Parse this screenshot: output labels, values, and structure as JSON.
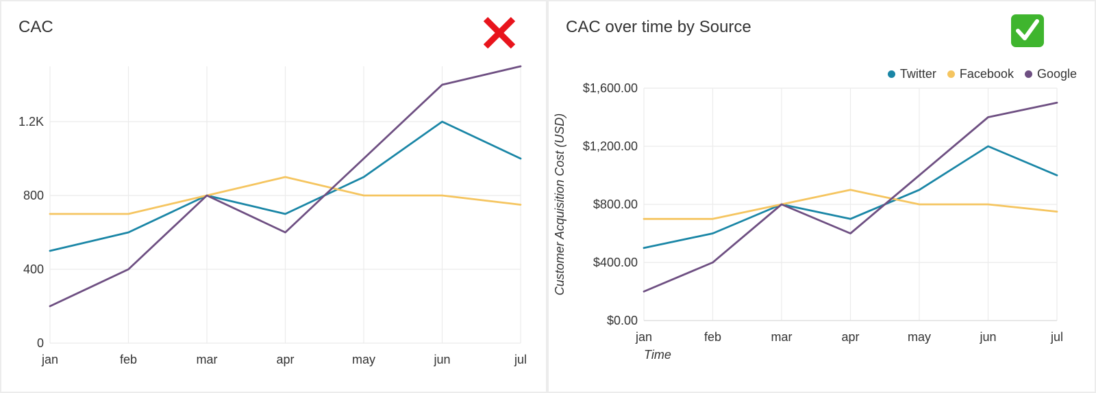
{
  "colors": {
    "twitter": "#1a86a6",
    "facebook": "#f5c560",
    "google": "#6e4f82",
    "grid": "#ebebeb",
    "bad": "#e8141c",
    "good": "#3fb52e"
  },
  "left_panel": {
    "title": "CAC",
    "badge_icon": "red-x-icon"
  },
  "right_panel": {
    "title": "CAC over time by Source",
    "badge_icon": "green-checkmark-icon"
  },
  "chart_data": [
    {
      "type": "line",
      "title": "CAC",
      "x": [
        "jan",
        "feb",
        "mar",
        "apr",
        "may",
        "jun",
        "jul"
      ],
      "yticks": [
        "0",
        "400",
        "800",
        "1.2K"
      ],
      "ylim": [
        0,
        1500
      ],
      "xlabel": "",
      "ylabel": "",
      "legend": false,
      "grid": true,
      "series": [
        {
          "values": [
            500,
            600,
            800,
            700,
            900,
            1200,
            1000
          ],
          "color": "#1a86a6"
        },
        {
          "values": [
            700,
            700,
            800,
            900,
            800,
            800,
            750
          ],
          "color": "#f5c560"
        },
        {
          "values": [
            200,
            400,
            800,
            600,
            1000,
            1400,
            1500
          ],
          "color": "#6e4f82"
        }
      ]
    },
    {
      "type": "line",
      "title": "CAC over time by Source",
      "x": [
        "jan",
        "feb",
        "mar",
        "apr",
        "may",
        "jun",
        "jul"
      ],
      "yticks": [
        "$0.00",
        "$400.00",
        "$800.00",
        "$1,200.00",
        "$1,600.00"
      ],
      "ylim": [
        0,
        1600
      ],
      "xlabel": "Time",
      "ylabel": "Customer Acquisition Cost (USD)",
      "legend": "top-right",
      "grid": true,
      "series": [
        {
          "name": "Twitter",
          "values": [
            500,
            600,
            800,
            700,
            900,
            1200,
            1000
          ],
          "color": "#1a86a6"
        },
        {
          "name": "Facebook",
          "values": [
            700,
            700,
            800,
            900,
            800,
            800,
            750
          ],
          "color": "#f5c560"
        },
        {
          "name": "Google",
          "values": [
            200,
            400,
            800,
            600,
            1000,
            1400,
            1500
          ],
          "color": "#6e4f82"
        }
      ]
    }
  ]
}
